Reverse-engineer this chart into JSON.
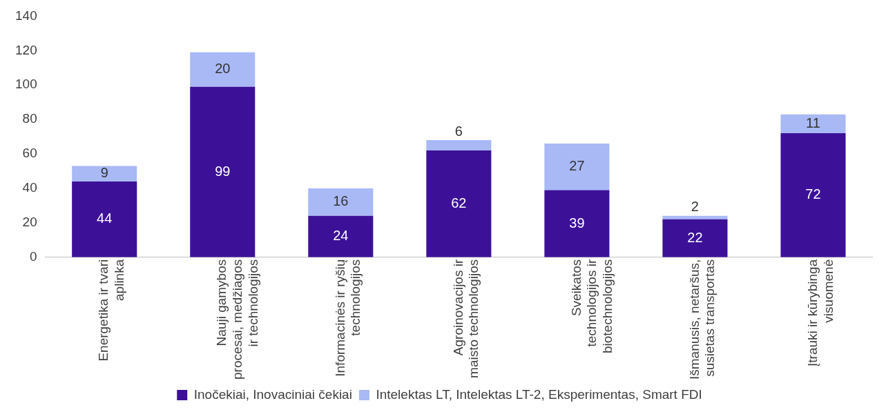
{
  "chart_data": {
    "type": "bar",
    "stacked": true,
    "categories": [
      "Energetika ir tvari aplinka",
      "Nauji gamybos procesai, medžiagos ir technologijos",
      "Informacinės ir ryšių technologijos",
      "Agroinovacijos ir maisto technologijos",
      "Sveikatos technologijos ir biotechnologijos",
      "Išmanusis, netaršus, susietas transportas",
      "Įtrauki ir kūrybinga visuomenė"
    ],
    "series": [
      {
        "name": "Inočekiai, Inovaciniai čekiai",
        "color": "#3c1198",
        "values": [
          44,
          99,
          24,
          62,
          39,
          22,
          72
        ]
      },
      {
        "name": "Intelektas LT, Intelektas LT-2, Eksperimentas, Smart FDI",
        "color": "#a9b9f6",
        "values": [
          9,
          20,
          16,
          6,
          27,
          2,
          11
        ]
      }
    ],
    "ylim": [
      0,
      140
    ],
    "yticks": [
      0,
      20,
      40,
      60,
      80,
      100,
      120,
      140
    ],
    "grid": false,
    "legend": "bottom",
    "data_labels": true
  }
}
